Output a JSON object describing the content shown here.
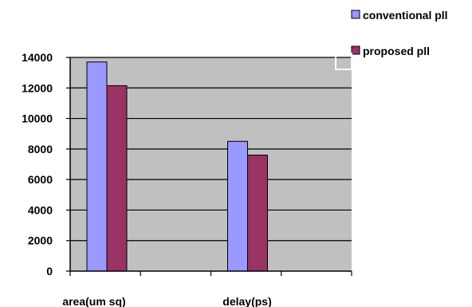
{
  "chart_data": {
    "type": "bar",
    "categories": [
      "area(um sq)",
      "delay(ps)"
    ],
    "series": [
      {
        "name": "conventional pll",
        "values": [
          13700,
          8500
        ],
        "color": "#9999ff"
      },
      {
        "name": "proposed pll",
        "values": [
          12150,
          7600
        ],
        "color": "#993366"
      }
    ],
    "ylim": [
      0,
      14000
    ],
    "yticks": [
      "0",
      "2000",
      "4000",
      "6000",
      "8000",
      "10000",
      "12000",
      "14000"
    ],
    "grid": true,
    "legend_position": "top-right",
    "plot_background": "#c0c0c0",
    "gridline_color": "#000000"
  }
}
